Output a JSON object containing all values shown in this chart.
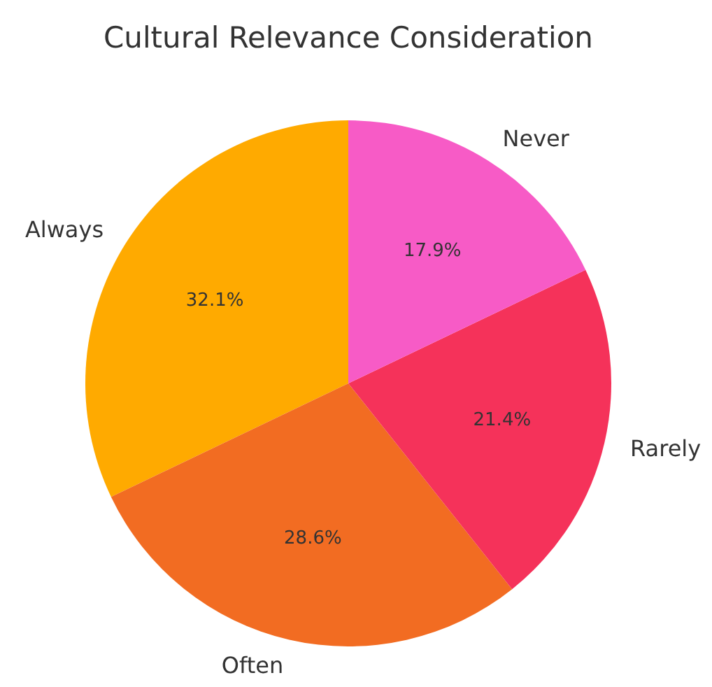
{
  "chart_data": {
    "type": "pie",
    "title": "Cultural Relevance Consideration",
    "categories": [
      "Always",
      "Often",
      "Rarely",
      "Never"
    ],
    "values": [
      32.1,
      28.6,
      21.4,
      17.9
    ],
    "colors": [
      "#ffaa00",
      "#f26c22",
      "#f5325a",
      "#f75bc6"
    ],
    "value_labels": [
      "32.1%",
      "28.6%",
      "21.4%",
      "17.9%"
    ]
  }
}
